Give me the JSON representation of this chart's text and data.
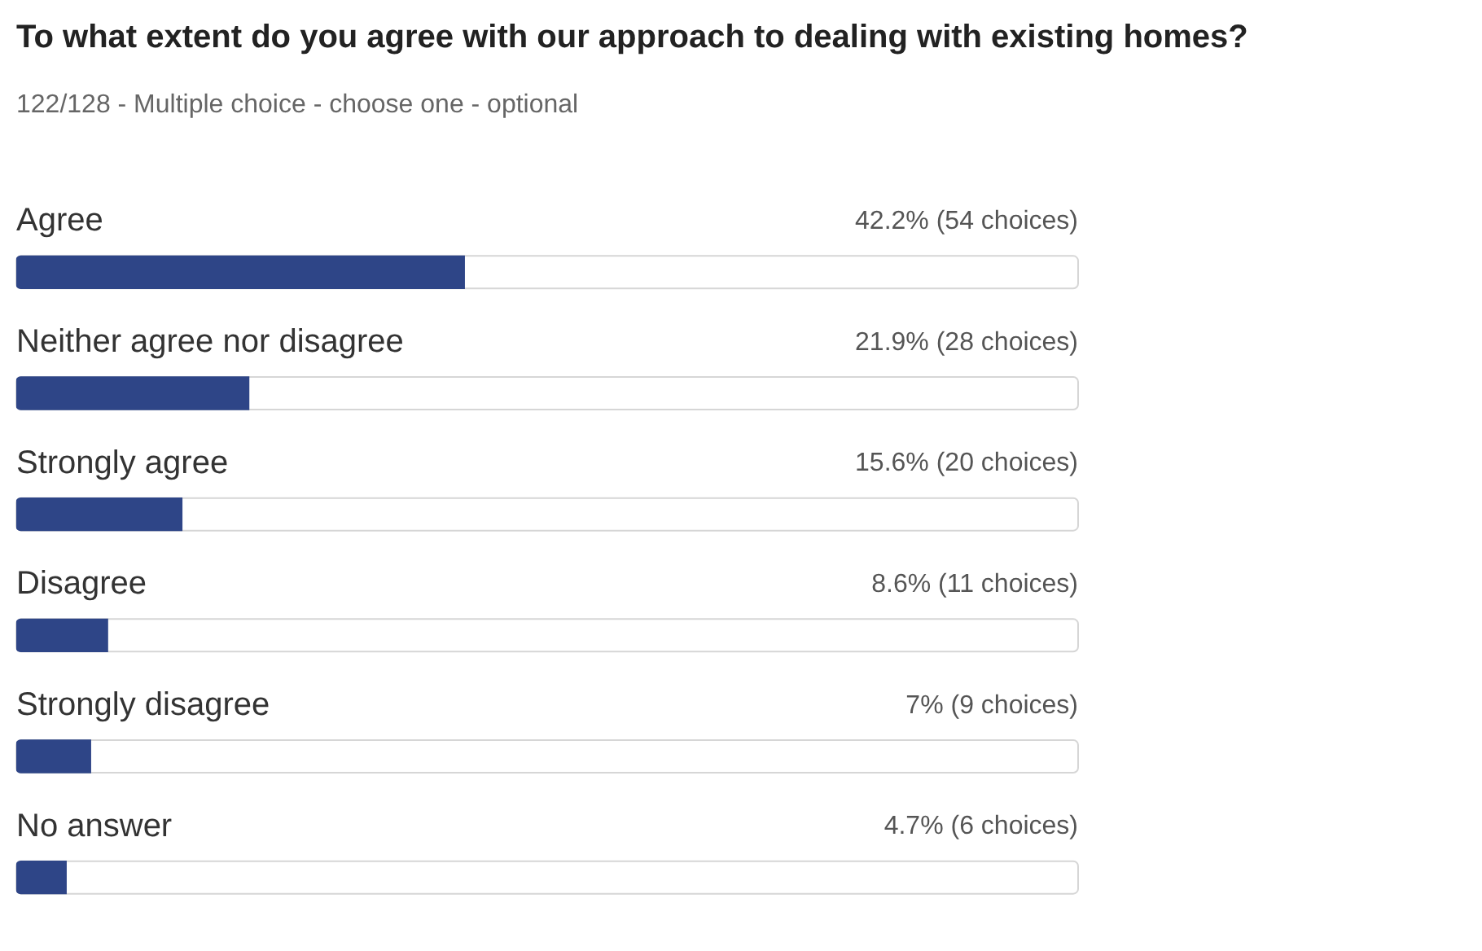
{
  "chart_data": {
    "type": "bar",
    "orientation": "horizontal",
    "title": "To what extent do you agree with our approach to dealing with existing homes?",
    "subtitle": "122/128 - Multiple choice - choose one - optional",
    "categories": [
      "Agree",
      "Neither agree nor disagree",
      "Strongly agree",
      "Disagree",
      "Strongly disagree",
      "No answer"
    ],
    "values": [
      42.2,
      21.9,
      15.6,
      8.6,
      7,
      4.7
    ],
    "value_labels": [
      "42.2% (54 choices)",
      "21.9% (28 choices)",
      "15.6% (20 choices)",
      "8.6% (11 choices)",
      "7% (9 choices)",
      "4.7% (6 choices)"
    ],
    "color": "#2e4587",
    "xlim": [
      0,
      100
    ],
    "tick_labels": "y"
  }
}
